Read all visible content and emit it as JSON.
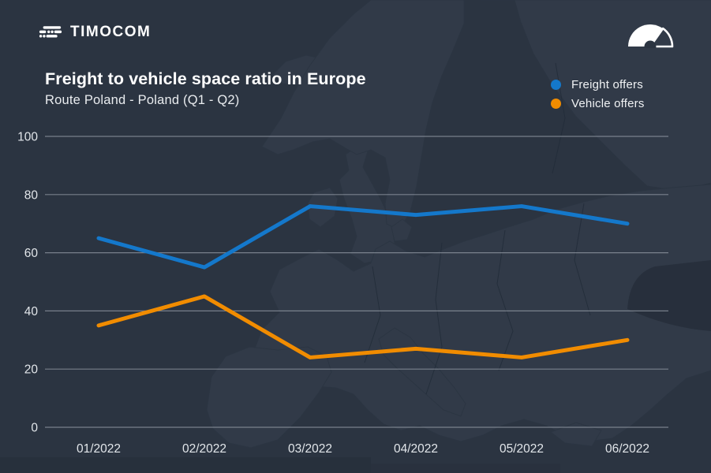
{
  "header": {
    "logo_text": "TIMOCOM",
    "title": "Freight to vehicle space ratio in Europe",
    "subtitle": "Route Poland - Poland (Q1 - Q2)"
  },
  "legend": [
    {
      "label": "Freight offers",
      "color": "#1478cb",
      "icon": "freight-dot-icon"
    },
    {
      "label": "Vehicle offers",
      "color": "#f18c00",
      "icon": "vehicle-dot-icon"
    }
  ],
  "icons": {
    "logo_icon": "timocom-truck-icon",
    "corner_icon": "gauge-icon"
  },
  "colors": {
    "background": "#2b3441",
    "map_land": "#37414f",
    "gridline": "#9aa1ab",
    "tick_text": "#e2e6ea",
    "freight_blue": "#1478cb",
    "vehicle_orange": "#f18c00"
  },
  "chart_data": {
    "type": "line",
    "title": "Freight to vehicle space ratio in Europe",
    "subtitle": "Route Poland - Poland (Q1 - Q2)",
    "categories": [
      "01/2022",
      "02/2022",
      "03/2022",
      "04/2022",
      "05/2022",
      "06/2022"
    ],
    "series": [
      {
        "name": "Freight offers",
        "color": "#1478cb",
        "values": [
          65,
          55,
          76,
          73,
          76,
          70
        ]
      },
      {
        "name": "Vehicle offers",
        "color": "#f18c00",
        "values": [
          35,
          45,
          24,
          27,
          24,
          30
        ]
      }
    ],
    "ylim": [
      0,
      100
    ],
    "yticks": [
      100,
      80,
      60,
      40,
      20,
      0
    ],
    "grid": true,
    "legend_position": "top-right"
  }
}
